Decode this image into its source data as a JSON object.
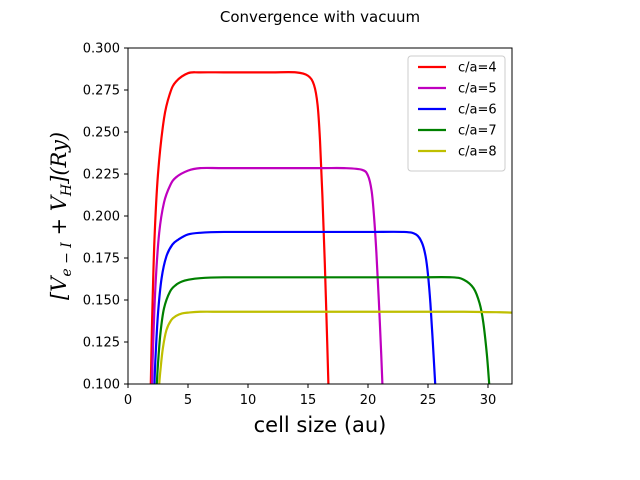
{
  "chart_data": {
    "type": "line",
    "title": "Convergence with vacuum",
    "xlabel": "cell size (au)",
    "ylabel": "[V_{e-I} + V_H](Ry)",
    "xlim": [
      0,
      32
    ],
    "ylim": [
      0.1,
      0.3
    ],
    "xticks": [
      0,
      5,
      10,
      15,
      20,
      25,
      30
    ],
    "yticks": [
      0.1,
      0.125,
      0.15,
      0.175,
      0.2,
      0.225,
      0.25,
      0.275,
      0.3
    ],
    "xtick_labels": [
      "0",
      "5",
      "10",
      "15",
      "20",
      "25",
      "30"
    ],
    "ytick_labels": [
      "0.100",
      "0.125",
      "0.150",
      "0.175",
      "0.200",
      "0.225",
      "0.250",
      "0.275",
      "0.300"
    ],
    "grid": false,
    "legend_position": "top-right",
    "series": [
      {
        "name": "c/a=4",
        "color": "#ff0000",
        "x": [
          1.9,
          2.0,
          2.2,
          2.5,
          3.0,
          3.5,
          4.0,
          5.0,
          6.0,
          8.0,
          10.0,
          12.0,
          14.0,
          15.0,
          15.5,
          15.8,
          16.0,
          16.2,
          16.4,
          16.6,
          16.7
        ],
        "y": [
          0.1,
          0.135,
          0.185,
          0.225,
          0.258,
          0.273,
          0.28,
          0.285,
          0.2855,
          0.2855,
          0.2855,
          0.2855,
          0.2855,
          0.2835,
          0.278,
          0.266,
          0.245,
          0.212,
          0.172,
          0.125,
          0.1
        ]
      },
      {
        "name": "c/a=5",
        "color": "#bf00bf",
        "x": [
          2.0,
          2.1,
          2.3,
          2.6,
          3.0,
          3.5,
          4.0,
          5.0,
          6.0,
          8.0,
          12.0,
          16.0,
          18.0,
          19.5,
          20.0,
          20.3,
          20.5,
          20.7,
          20.9,
          21.1,
          21.2
        ],
        "y": [
          0.1,
          0.125,
          0.16,
          0.19,
          0.208,
          0.218,
          0.223,
          0.227,
          0.2285,
          0.2285,
          0.2285,
          0.2285,
          0.2285,
          0.2275,
          0.224,
          0.215,
          0.2,
          0.178,
          0.15,
          0.118,
          0.1
        ]
      },
      {
        "name": "c/a=6",
        "color": "#0000ff",
        "x": [
          2.2,
          2.3,
          2.5,
          2.8,
          3.2,
          3.7,
          4.2,
          5.0,
          6.0,
          8.0,
          12.0,
          16.0,
          20.0,
          23.0,
          24.0,
          24.5,
          24.8,
          25.0,
          25.2,
          25.4,
          25.6
        ],
        "y": [
          0.1,
          0.117,
          0.142,
          0.163,
          0.176,
          0.183,
          0.186,
          0.189,
          0.19,
          0.1905,
          0.1905,
          0.1905,
          0.1905,
          0.1905,
          0.189,
          0.184,
          0.176,
          0.165,
          0.148,
          0.125,
          0.1
        ]
      },
      {
        "name": "c/a=7",
        "color": "#008000",
        "x": [
          2.4,
          2.5,
          2.7,
          3.0,
          3.5,
          4.0,
          4.5,
          5.0,
          6.0,
          8.0,
          12.0,
          16.0,
          20.0,
          24.0,
          27.0,
          28.0,
          28.8,
          29.3,
          29.6,
          29.9,
          30.1
        ],
        "y": [
          0.1,
          0.112,
          0.13,
          0.145,
          0.155,
          0.159,
          0.161,
          0.162,
          0.163,
          0.1635,
          0.1635,
          0.1635,
          0.1635,
          0.1635,
          0.1635,
          0.162,
          0.157,
          0.148,
          0.137,
          0.118,
          0.1
        ]
      },
      {
        "name": "c/a=8",
        "color": "#bfbf00",
        "x": [
          2.6,
          2.7,
          2.9,
          3.2,
          3.6,
          4.0,
          4.5,
          5.0,
          6.0,
          8.0,
          12.0,
          16.0,
          20.0,
          24.0,
          28.0,
          30.0,
          31.0,
          32.0
        ],
        "y": [
          0.1,
          0.108,
          0.121,
          0.132,
          0.138,
          0.1405,
          0.142,
          0.1425,
          0.143,
          0.143,
          0.143,
          0.143,
          0.143,
          0.143,
          0.143,
          0.1428,
          0.1427,
          0.1425
        ]
      }
    ]
  }
}
